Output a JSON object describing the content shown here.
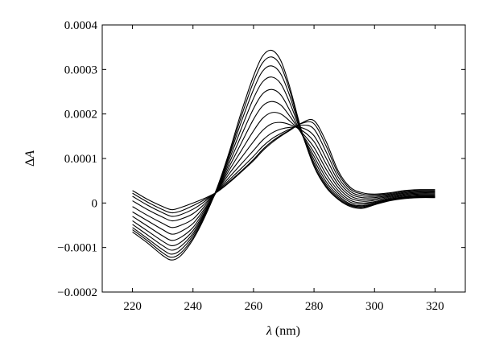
{
  "chart_data": {
    "type": "line",
    "title": "",
    "xlabel_symbol": "λ",
    "xlabel_unit": " (nm)",
    "ylabel_prefix": "Δ",
    "ylabel_symbol": "A",
    "xlim": [
      210,
      330
    ],
    "ylim": [
      -0.0002,
      0.0004
    ],
    "x_ticks": [
      220,
      240,
      260,
      280,
      300,
      320
    ],
    "x_tick_labels": [
      "220",
      "240",
      "260",
      "280",
      "300",
      "320"
    ],
    "y_ticks": [
      -0.0002,
      -0.0001,
      0,
      0.0001,
      0.0002,
      0.0003,
      0.0004
    ],
    "y_tick_labels": [
      "−0.0002",
      "−0.0001",
      "0",
      "0.0001",
      "0.0002",
      "0.0003",
      "0.0004"
    ],
    "grid": false,
    "legend": "none",
    "line_color": "#000000",
    "x": [
      220,
      225,
      230,
      233,
      236,
      240,
      244,
      248,
      252,
      256,
      260,
      263,
      266,
      269,
      272,
      276,
      280,
      284,
      288,
      292,
      296,
      300,
      305,
      310,
      315,
      320
    ],
    "series": [
      {
        "values": [
          -6.5e-05,
          -9e-05,
          -0.000118,
          -0.000128,
          -0.000118,
          -8.2e-05,
          -3e-05,
          3.5e-05,
          0.000115,
          0.000205,
          0.000285,
          0.00033,
          0.000343,
          0.00032,
          0.00026,
          0.00016,
          8.2e-05,
          3.5e-05,
          8e-06,
          -8e-06,
          -1.2e-05,
          -4e-06,
          5e-06,
          1e-05,
          1.2e-05,
          1.2e-05
        ]
      },
      {
        "values": [
          -6e-05,
          -8.5e-05,
          -0.000112,
          -0.000122,
          -0.000112,
          -7.8e-05,
          -2.8e-05,
          3.3e-05,
          0.00011,
          0.000195,
          0.000272,
          0.000315,
          0.000328,
          0.000308,
          0.000252,
          0.000158,
          8.5e-05,
          3.8e-05,
          1e-05,
          -6e-06,
          -1e-05,
          -3e-06,
          6e-06,
          1.1e-05,
          1.3e-05,
          1.3e-05
        ]
      },
      {
        "values": [
          -5.5e-05,
          -8e-05,
          -0.000105,
          -0.000115,
          -0.000105,
          -7.3e-05,
          -2.5e-05,
          3.2e-05,
          0.000105,
          0.000183,
          0.000255,
          0.000296,
          0.000308,
          0.00029,
          0.00024,
          0.000156,
          9e-05,
          4.2e-05,
          1.3e-05,
          -4e-06,
          -8e-06,
          -2e-06,
          7e-06,
          1.2e-05,
          1.4e-05,
          1.4e-05
        ]
      },
      {
        "values": [
          -4.8e-05,
          -7.2e-05,
          -9.6e-05,
          -0.000106,
          -9.7e-05,
          -6.8e-05,
          -2.2e-05,
          3e-05,
          9.8e-05,
          0.000168,
          0.000235,
          0.000272,
          0.000283,
          0.000268,
          0.000225,
          0.000155,
          9.7e-05,
          4.8e-05,
          1.7e-05,
          -2e-06,
          -6e-06,
          -1e-06,
          8e-06,
          1.3e-05,
          1.5e-05,
          1.5e-05
        ]
      },
      {
        "values": [
          -4e-05,
          -6.3e-05,
          -8.6e-05,
          -9.6e-05,
          -8.8e-05,
          -6.2e-05,
          -1.9e-05,
          2.9e-05,
          9e-05,
          0.000152,
          0.000212,
          0.000245,
          0.000255,
          0.000243,
          0.000208,
          0.000154,
          0.000105,
          5.6e-05,
          2.2e-05,
          2e-06,
          -3e-06,
          1e-06,
          9e-06,
          1.4e-05,
          1.6e-05,
          1.6e-05
        ]
      },
      {
        "values": [
          -3e-05,
          -5.2e-05,
          -7.4e-05,
          -8.4e-05,
          -7.7e-05,
          -5.5e-05,
          -1.5e-05,
          2.8e-05,
          8.2e-05,
          0.000135,
          0.000188,
          0.000218,
          0.000228,
          0.00022,
          0.000195,
          0.000155,
          0.000114,
          6.5e-05,
          2.8e-05,
          6e-06,
          0.0,
          3e-06,
          1.1e-05,
          1.6e-05,
          1.8e-05,
          1.8e-05
        ]
      },
      {
        "values": [
          -2e-05,
          -4e-05,
          -6e-05,
          -7e-05,
          -6.4e-05,
          -4.6e-05,
          -1.1e-05,
          2.8e-05,
          7.4e-05,
          0.000118,
          0.000162,
          0.00019,
          0.000203,
          0.0002,
          0.000184,
          0.000158,
          0.000125,
          7.6e-05,
          3.5e-05,
          1.1e-05,
          4e-06,
          6e-06,
          1.3e-05,
          1.8e-05,
          2e-05,
          2e-05
        ]
      },
      {
        "values": [
          -8e-06,
          -2.8e-05,
          -4.6e-05,
          -5.5e-05,
          -5e-05,
          -3.6e-05,
          -6e-06,
          2.8e-05,
          6.6e-05,
          0.000102,
          0.000138,
          0.000163,
          0.000178,
          0.000181,
          0.000176,
          0.000163,
          0.000138,
          8.8e-05,
          4.2e-05,
          1.6e-05,
          8e-06,
          9e-06,
          1.5e-05,
          2e-05,
          2.2e-05,
          2.2e-05
        ]
      },
      {
        "values": [
          5e-06,
          -1.5e-05,
          -3.2e-05,
          -4e-05,
          -3.6e-05,
          -2.4e-05,
          -1e-06,
          2.7e-05,
          5.8e-05,
          8.8e-05,
          0.000118,
          0.000141,
          0.000157,
          0.000166,
          0.00017,
          0.000169,
          0.000151,
          0.000101,
          5e-05,
          2.1e-05,
          1.2e-05,
          1.2e-05,
          1.7e-05,
          2.2e-05,
          2.4e-05,
          2.4e-05
        ]
      },
      {
        "values": [
          1.5e-05,
          -5e-06,
          -2.2e-05,
          -3e-05,
          -2.6e-05,
          -1.4e-05,
          4e-06,
          2.6e-05,
          5.2e-05,
          7.8e-05,
          0.000105,
          0.000127,
          0.000144,
          0.000156,
          0.000166,
          0.000175,
          0.000166,
          0.000115,
          5.8e-05,
          2.6e-05,
          1.6e-05,
          1.5e-05,
          1.9e-05,
          2.4e-05,
          2.6e-05,
          2.6e-05
        ]
      },
      {
        "values": [
          2.2e-05,
          2e-06,
          -1.5e-05,
          -2.2e-05,
          -1.8e-05,
          -6e-06,
          8e-06,
          2.5e-05,
          4.8e-05,
          7.2e-05,
          9.8e-05,
          0.00012,
          0.000138,
          0.000152,
          0.000164,
          0.000179,
          0.000178,
          0.000128,
          6.6e-05,
          3.1e-05,
          2e-05,
          1.8e-05,
          2.1e-05,
          2.6e-05,
          2.8e-05,
          2.8e-05
        ]
      },
      {
        "values": [
          2.8e-05,
          8e-06,
          -8e-06,
          -1.5e-05,
          -1e-05,
          0.0,
          1.1e-05,
          2.5e-05,
          4.6e-05,
          7e-05,
          9.5e-05,
          0.000117,
          0.000135,
          0.00015,
          0.000163,
          0.00018,
          0.000185,
          0.000138,
          7.2e-05,
          3.5e-05,
          2.3e-05,
          2e-05,
          2.3e-05,
          2.8e-05,
          3e-05,
          3e-05
        ]
      }
    ]
  }
}
